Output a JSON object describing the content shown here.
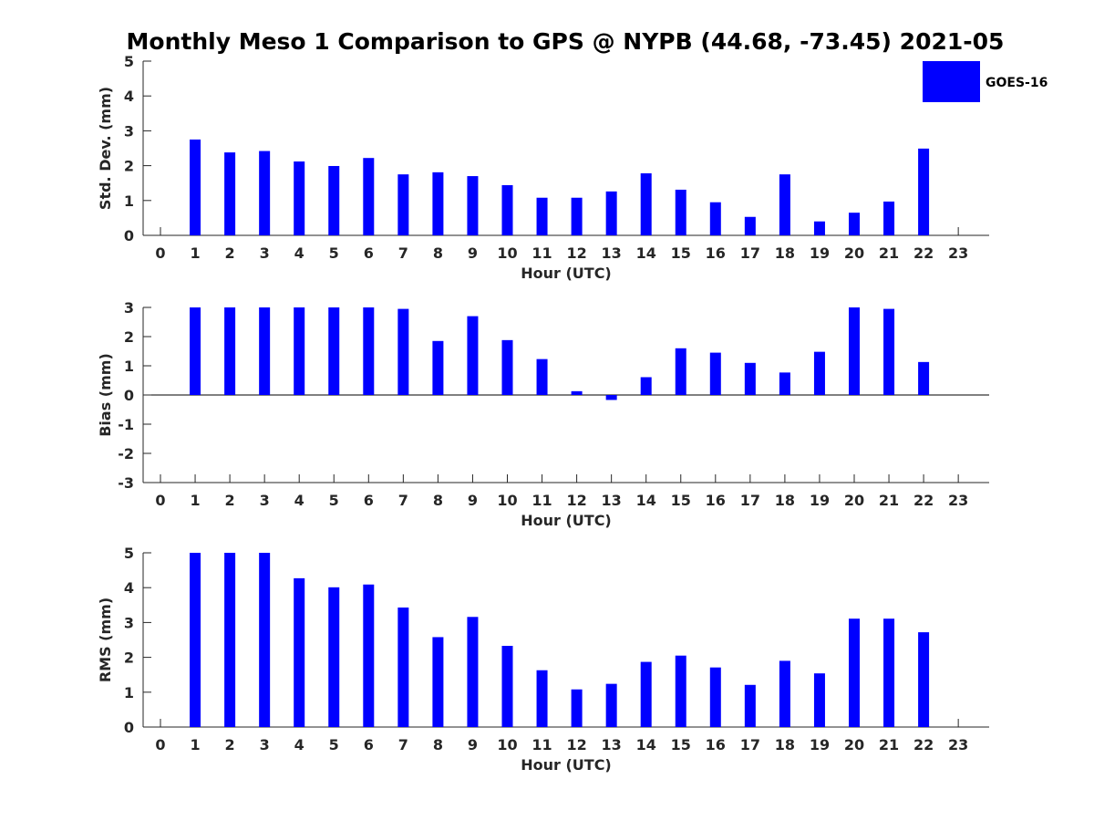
{
  "chart_data": {
    "title": "Monthly Meso 1 Comparison to GPS @ NYPB (44.68, -73.45) 2021-05",
    "type": "bar",
    "legend": {
      "position": "top-right",
      "entries": [
        {
          "name": "GOES-16",
          "color": "#0000ff"
        }
      ]
    },
    "panels": [
      {
        "type": "bar",
        "xlabel": "Hour (UTC)",
        "ylabel": "Std. Dev. (mm)",
        "ylim": [
          0,
          5
        ],
        "yticks": [
          0,
          1,
          2,
          3,
          4,
          5
        ],
        "categories": [
          0,
          1,
          2,
          3,
          4,
          5,
          6,
          7,
          8,
          9,
          10,
          11,
          12,
          13,
          14,
          15,
          16,
          17,
          18,
          19,
          20,
          21,
          22,
          23
        ],
        "series": [
          {
            "name": "GOES-16",
            "color": "#0000ff",
            "values": [
              null,
              2.75,
              2.38,
              2.42,
              2.12,
              1.99,
              2.22,
              1.75,
              1.81,
              1.7,
              1.44,
              1.08,
              1.08,
              1.26,
              1.78,
              1.31,
              0.95,
              0.53,
              1.75,
              0.4,
              0.65,
              0.97,
              2.49,
              null
            ]
          }
        ]
      },
      {
        "type": "bar",
        "xlabel": "Hour (UTC)",
        "ylabel": "Bias (mm)",
        "ylim": [
          -3,
          3
        ],
        "yticks": [
          -3,
          -2,
          -1,
          0,
          1,
          2,
          3
        ],
        "categories": [
          0,
          1,
          2,
          3,
          4,
          5,
          6,
          7,
          8,
          9,
          10,
          11,
          12,
          13,
          14,
          15,
          16,
          17,
          18,
          19,
          20,
          21,
          22,
          23
        ],
        "series": [
          {
            "name": "GOES-16",
            "color": "#0000ff",
            "values": [
              null,
              3.0,
              3.0,
              3.0,
              3.0,
              3.0,
              3.0,
              2.95,
              1.85,
              2.7,
              1.88,
              1.23,
              0.13,
              -0.17,
              0.61,
              1.6,
              1.45,
              1.1,
              0.77,
              1.48,
              3.0,
              2.95,
              1.13,
              null
            ]
          }
        ]
      },
      {
        "type": "bar",
        "xlabel": "Hour (UTC)",
        "ylabel": "RMS (mm)",
        "ylim": [
          0,
          5
        ],
        "yticks": [
          0,
          1,
          2,
          3,
          4,
          5
        ],
        "categories": [
          0,
          1,
          2,
          3,
          4,
          5,
          6,
          7,
          8,
          9,
          10,
          11,
          12,
          13,
          14,
          15,
          16,
          17,
          18,
          19,
          20,
          21,
          22,
          23
        ],
        "series": [
          {
            "name": "GOES-16",
            "color": "#0000ff",
            "values": [
              null,
              5.0,
              5.0,
              5.0,
              4.27,
              4.01,
              4.09,
              3.43,
              2.58,
              3.16,
              2.33,
              1.63,
              1.08,
              1.24,
              1.87,
              2.05,
              1.71,
              1.21,
              1.9,
              1.54,
              3.11,
              3.11,
              2.72,
              null
            ]
          }
        ]
      }
    ]
  }
}
